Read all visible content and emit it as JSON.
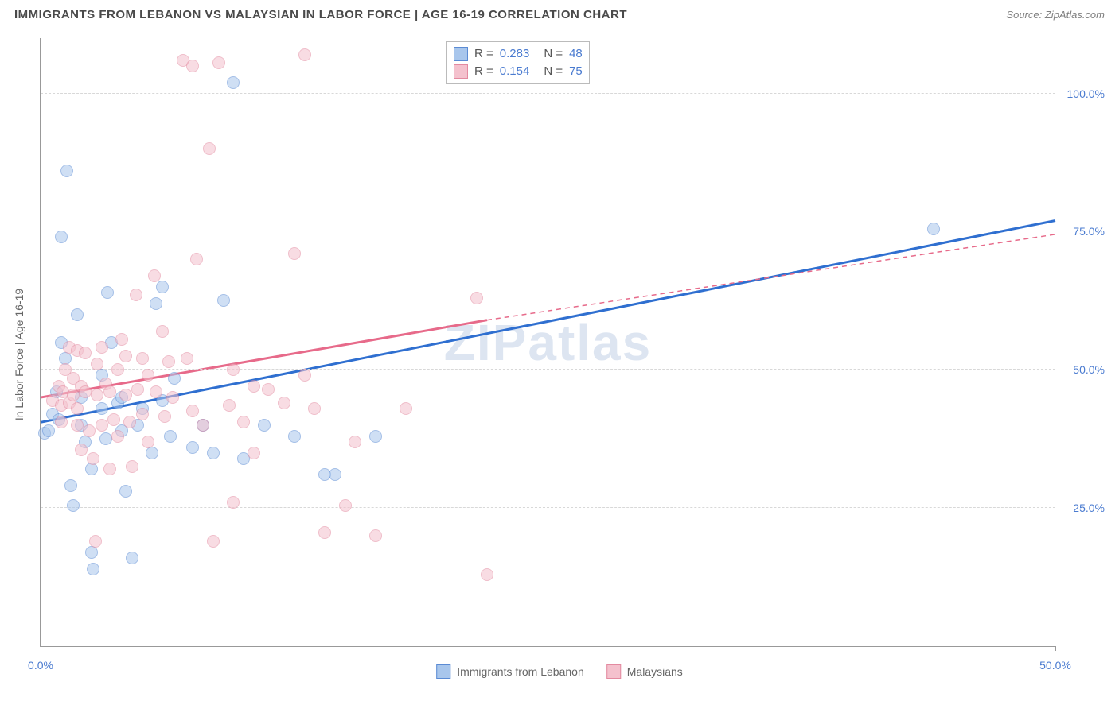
{
  "title": "IMMIGRANTS FROM LEBANON VS MALAYSIAN IN LABOR FORCE | AGE 16-19 CORRELATION CHART",
  "source_label": "Source:",
  "source_name": "ZipAtlas.com",
  "watermark": "ZIPatlas",
  "ylabel": "In Labor Force | Age 16-19",
  "chart": {
    "type": "scatter",
    "xlim": [
      0,
      50
    ],
    "ylim": [
      0,
      110
    ],
    "yticks": [
      25,
      50,
      75,
      100
    ],
    "ytick_labels": [
      "25.0%",
      "50.0%",
      "75.0%",
      "100.0%"
    ],
    "xticks": [
      0,
      50
    ],
    "xtick_labels": [
      "0.0%",
      "50.0%"
    ],
    "grid_color": "#d8d8d8",
    "axis_color": "#999999",
    "background": "#ffffff",
    "point_radius": 8,
    "point_opacity": 0.55,
    "series": [
      {
        "name": "Immigrants from Lebanon",
        "fill": "#a8c6ec",
        "stroke": "#5b8bd4",
        "line_color": "#2f6fd0",
        "line_width": 3,
        "trend": {
          "x1": 0,
          "y1": 40.5,
          "x2": 50,
          "y2": 77
        },
        "R": "0.283",
        "N": "48",
        "points": [
          [
            0.2,
            38.5
          ],
          [
            0.4,
            39
          ],
          [
            0.6,
            42
          ],
          [
            0.8,
            46
          ],
          [
            0.9,
            41
          ],
          [
            1.0,
            55
          ],
          [
            1.2,
            52
          ],
          [
            1.0,
            74
          ],
          [
            1.3,
            86
          ],
          [
            1.5,
            29
          ],
          [
            1.6,
            25.5
          ],
          [
            1.8,
            60
          ],
          [
            2.0,
            45
          ],
          [
            2.0,
            40
          ],
          [
            2.2,
            37
          ],
          [
            2.5,
            17
          ],
          [
            2.6,
            14
          ],
          [
            2.5,
            32
          ],
          [
            3.0,
            49
          ],
          [
            3.0,
            43
          ],
          [
            3.2,
            37.5
          ],
          [
            3.3,
            64
          ],
          [
            3.5,
            55
          ],
          [
            3.8,
            44
          ],
          [
            4.0,
            45
          ],
          [
            4.0,
            39
          ],
          [
            4.2,
            28
          ],
          [
            4.5,
            16
          ],
          [
            4.8,
            40
          ],
          [
            5.0,
            43
          ],
          [
            5.5,
            35
          ],
          [
            5.7,
            62
          ],
          [
            6.0,
            44.5
          ],
          [
            6.0,
            65
          ],
          [
            6.4,
            38
          ],
          [
            6.6,
            48.5
          ],
          [
            7.5,
            36
          ],
          [
            8.0,
            40
          ],
          [
            8.5,
            35
          ],
          [
            9.0,
            62.5
          ],
          [
            9.5,
            102
          ],
          [
            10.0,
            34
          ],
          [
            11.0,
            40
          ],
          [
            12.5,
            38
          ],
          [
            14.0,
            31
          ],
          [
            14.5,
            31
          ],
          [
            16.5,
            38
          ],
          [
            44.0,
            75.5
          ]
        ]
      },
      {
        "name": "Malaysians",
        "fill": "#f4c1cd",
        "stroke": "#e38aa0",
        "line_color": "#e76a8a",
        "line_width": 3,
        "trend": {
          "x1": 0,
          "y1": 45,
          "x2": 22,
          "y2": 59
        },
        "trend_dash": {
          "x1": 22,
          "y1": 59,
          "x2": 50,
          "y2": 74.5
        },
        "R": "0.154",
        "N": "75",
        "points": [
          [
            0.6,
            44.5
          ],
          [
            0.9,
            47
          ],
          [
            1.0,
            40.5
          ],
          [
            1.0,
            43.5
          ],
          [
            1.1,
            46
          ],
          [
            1.2,
            50
          ],
          [
            1.4,
            54
          ],
          [
            1.4,
            44
          ],
          [
            1.6,
            45.5
          ],
          [
            1.6,
            48.5
          ],
          [
            1.8,
            40
          ],
          [
            1.8,
            43
          ],
          [
            1.8,
            53.5
          ],
          [
            2.0,
            47
          ],
          [
            2.0,
            35.5
          ],
          [
            2.2,
            46
          ],
          [
            2.2,
            53
          ],
          [
            2.4,
            39
          ],
          [
            2.6,
            34
          ],
          [
            2.7,
            19
          ],
          [
            2.8,
            51
          ],
          [
            2.8,
            45.5
          ],
          [
            3.0,
            40
          ],
          [
            3.0,
            54
          ],
          [
            3.2,
            47.5
          ],
          [
            3.4,
            32
          ],
          [
            3.4,
            46
          ],
          [
            3.6,
            41
          ],
          [
            3.8,
            50
          ],
          [
            3.8,
            38
          ],
          [
            4.0,
            55.5
          ],
          [
            4.2,
            45.5
          ],
          [
            4.2,
            52.5
          ],
          [
            4.4,
            40.5
          ],
          [
            4.5,
            32.5
          ],
          [
            4.7,
            63.5
          ],
          [
            4.8,
            46.5
          ],
          [
            5.0,
            42
          ],
          [
            5.0,
            52
          ],
          [
            5.3,
            49
          ],
          [
            5.3,
            37
          ],
          [
            5.6,
            67
          ],
          [
            5.7,
            46
          ],
          [
            6.0,
            57
          ],
          [
            6.1,
            41.5
          ],
          [
            6.3,
            51.5
          ],
          [
            6.5,
            45
          ],
          [
            7.0,
            106
          ],
          [
            7.2,
            52
          ],
          [
            7.5,
            105
          ],
          [
            7.5,
            42.5
          ],
          [
            7.7,
            70
          ],
          [
            8.0,
            40
          ],
          [
            8.3,
            90
          ],
          [
            8.5,
            19
          ],
          [
            8.8,
            105.5
          ],
          [
            9.3,
            43.5
          ],
          [
            9.5,
            26
          ],
          [
            9.5,
            50
          ],
          [
            10.0,
            40.5
          ],
          [
            10.5,
            35
          ],
          [
            10.5,
            47
          ],
          [
            11.2,
            46.5
          ],
          [
            12.0,
            44
          ],
          [
            12.5,
            71
          ],
          [
            13.0,
            107
          ],
          [
            13.0,
            49
          ],
          [
            13.5,
            43
          ],
          [
            14.0,
            20.5
          ],
          [
            15.0,
            25.5
          ],
          [
            15.5,
            37
          ],
          [
            16.5,
            20
          ],
          [
            18.0,
            43
          ],
          [
            21.5,
            63
          ],
          [
            22.0,
            13
          ]
        ]
      }
    ]
  },
  "legend_bottom": [
    {
      "label": "Immigrants from Lebanon",
      "fill": "#a8c6ec",
      "stroke": "#5b8bd4"
    },
    {
      "label": "Malaysians",
      "fill": "#f4c1cd",
      "stroke": "#e38aa0"
    }
  ],
  "stat_box": {
    "left_pct": 40,
    "top_pct": 0.5
  }
}
